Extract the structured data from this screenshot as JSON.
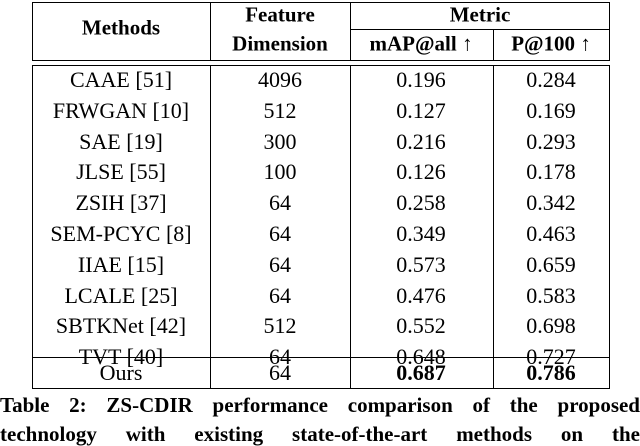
{
  "table": {
    "header": {
      "methods": "Methods",
      "feature": [
        "Feature",
        "Dimension"
      ],
      "metric": "Metric",
      "map": "mAP@all ↑",
      "p100": "P@100 ↑"
    },
    "rows": [
      [
        "CAAE [51]",
        "4096",
        "0.196",
        "0.284"
      ],
      [
        "FRWGAN [10]",
        "512",
        "0.127",
        "0.169"
      ],
      [
        "SAE [19]",
        "300",
        "0.216",
        "0.293"
      ],
      [
        "JLSE [55]",
        "100",
        "0.126",
        "0.178"
      ],
      [
        "ZSIH [37]",
        "64",
        "0.258",
        "0.342"
      ],
      [
        "SEM-PCYC [8]",
        "64",
        "0.349",
        "0.463"
      ],
      [
        "IIAE [15]",
        "64",
        "0.573",
        "0.659"
      ],
      [
        "LCALE [25]",
        "64",
        "0.476",
        "0.583"
      ],
      [
        "SBTKNet [42]",
        "512",
        "0.552",
        "0.698"
      ],
      [
        "TVT [40]",
        "64",
        "0.648",
        "0.727"
      ],
      [
        "Ours",
        "64",
        "0.687",
        "0.786"
      ]
    ],
    "caption": [
      "Table 2: ZS-CDIR performance comparison of the proposed",
      "technology with existing state-of-the-art methods on the"
    ]
  }
}
